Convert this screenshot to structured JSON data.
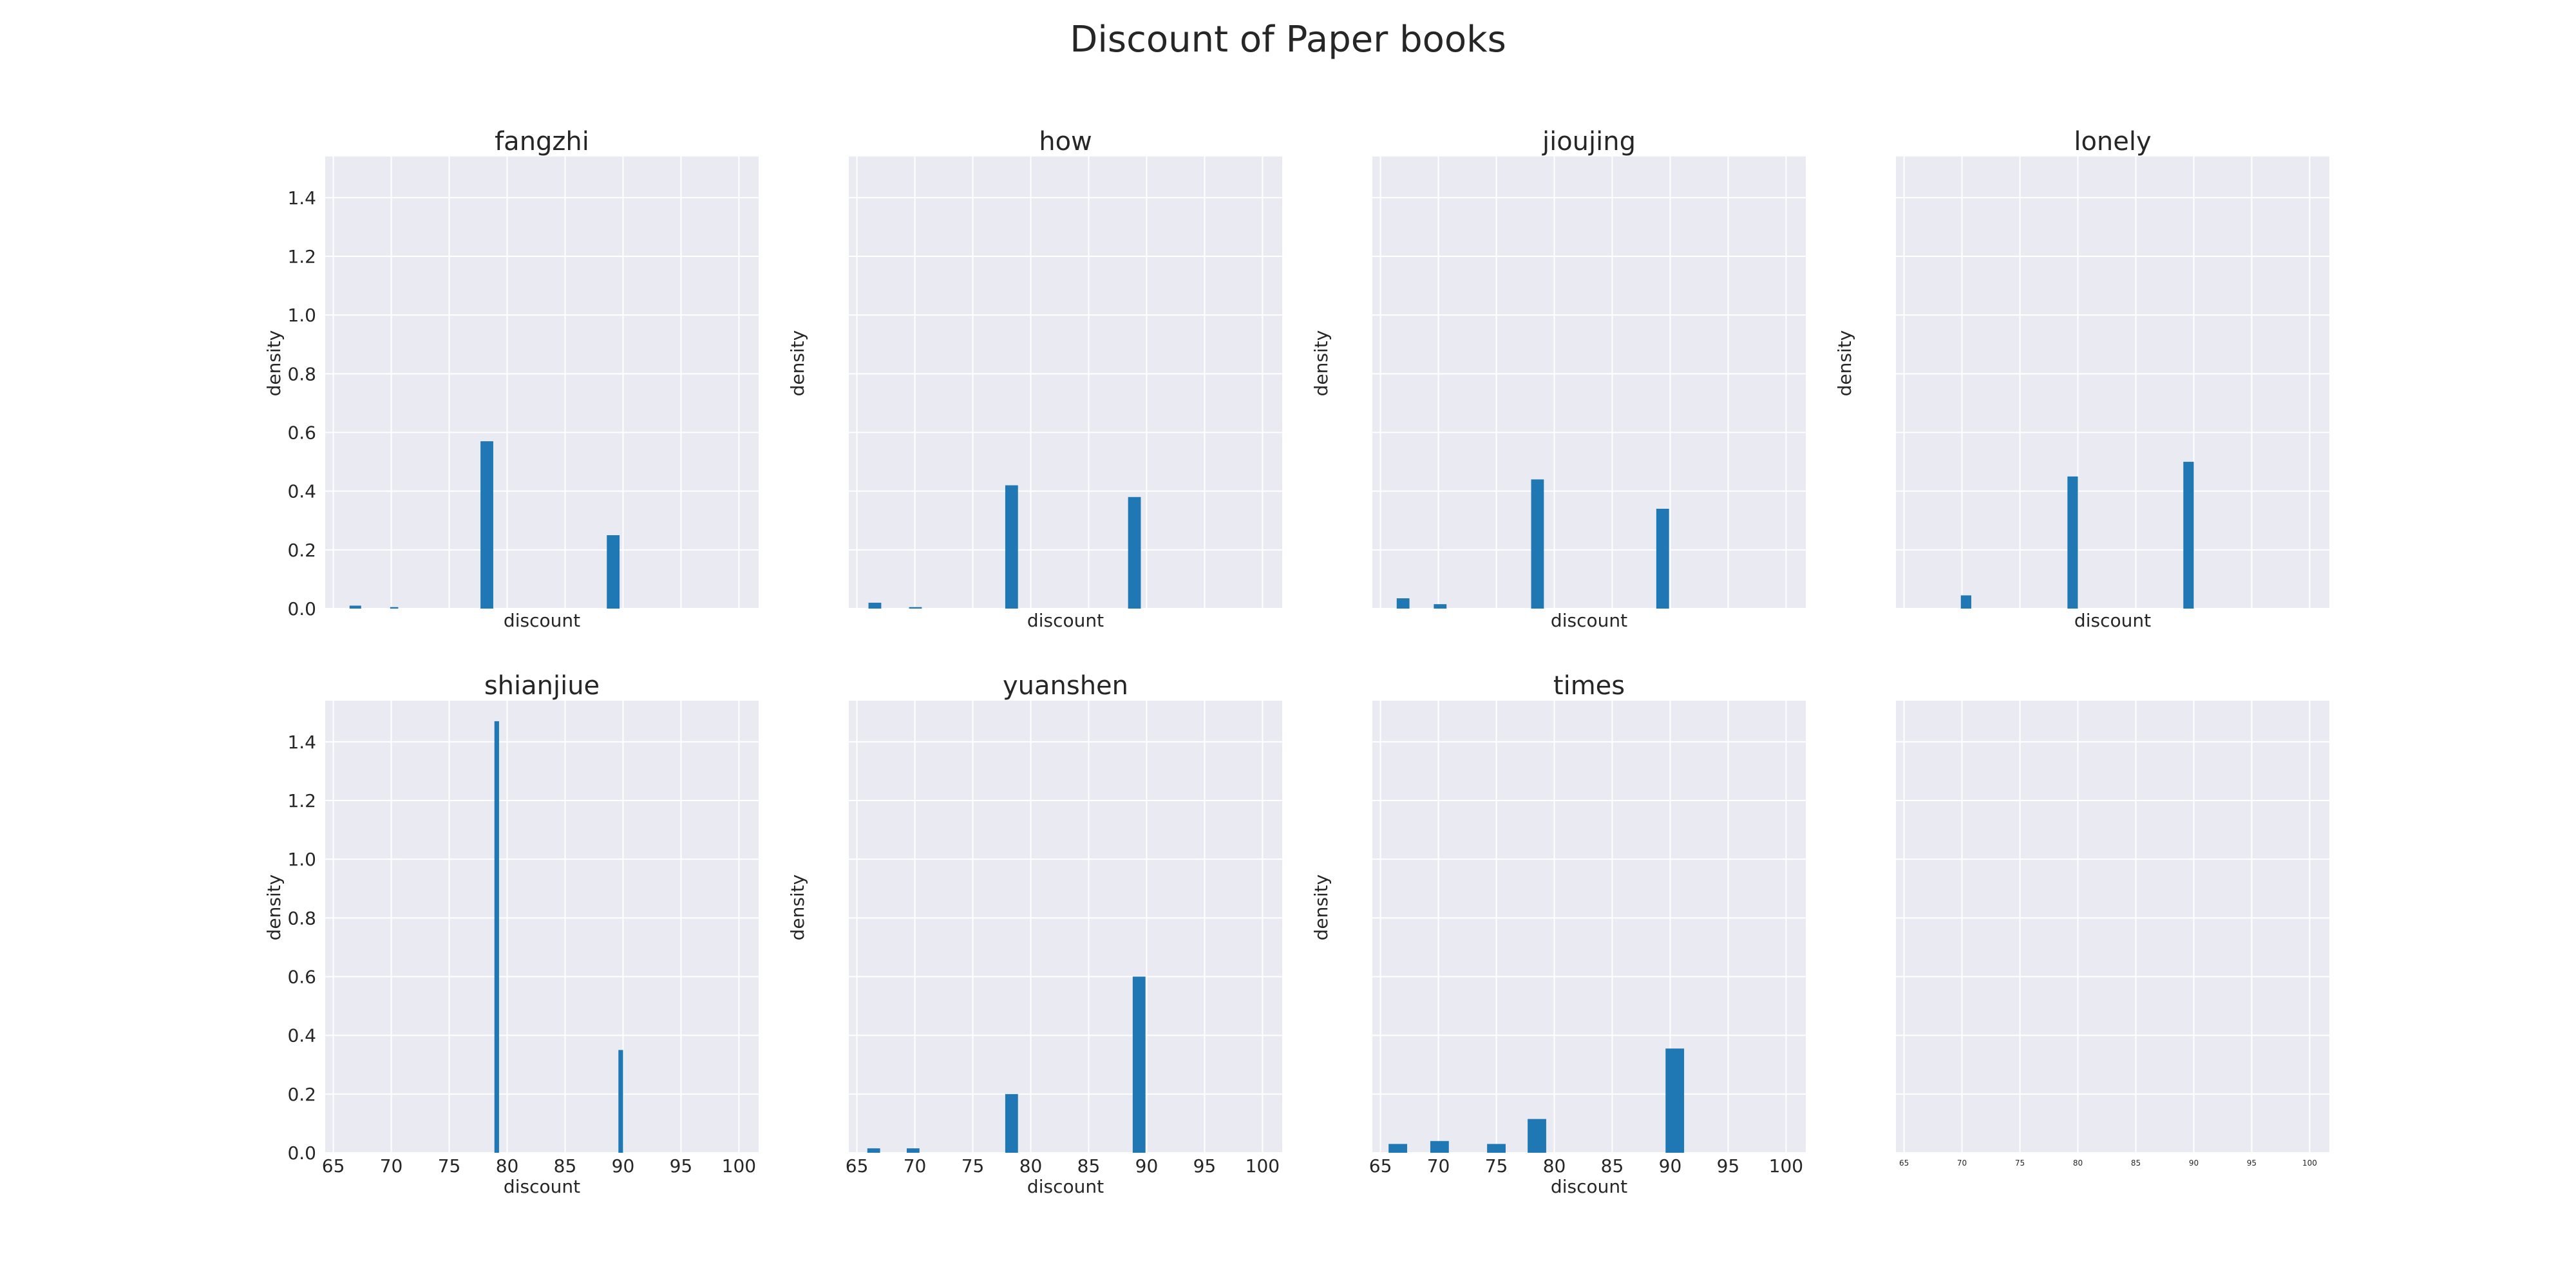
{
  "title": "Discount of Paper books",
  "chart_data": [
    {
      "type": "bar",
      "title": "fangzhi",
      "xlabel": "discount",
      "ylabel": "density",
      "xlim": [
        64.3,
        101.7
      ],
      "ylim": [
        0,
        1.54
      ],
      "xticks": [],
      "yticks": [
        "0.0",
        "0.2",
        "0.4",
        "0.6",
        "0.8",
        "1.0",
        "1.2",
        "1.4"
      ],
      "grid": true,
      "bars": [
        {
          "x0": 66.4,
          "x1": 67.4,
          "y": 0.01
        },
        {
          "x0": 69.9,
          "x1": 70.6,
          "y": 0.005
        },
        {
          "x0": 77.7,
          "x1": 78.8,
          "y": 0.57
        },
        {
          "x0": 88.6,
          "x1": 89.7,
          "y": 0.25
        }
      ]
    },
    {
      "type": "bar",
      "title": "how",
      "xlabel": "discount",
      "ylabel": "density",
      "xlim": [
        64.3,
        101.7
      ],
      "ylim": [
        0,
        1.54
      ],
      "xticks": [],
      "yticks": [],
      "grid": true,
      "bars": [
        {
          "x0": 66.0,
          "x1": 67.1,
          "y": 0.02
        },
        {
          "x0": 69.5,
          "x1": 70.6,
          "y": 0.005
        },
        {
          "x0": 77.8,
          "x1": 78.9,
          "y": 0.42
        },
        {
          "x0": 88.4,
          "x1": 89.5,
          "y": 0.38
        }
      ]
    },
    {
      "type": "bar",
      "title": "jioujing",
      "xlabel": "discount",
      "ylabel": "density",
      "xlim": [
        64.3,
        101.7
      ],
      "ylim": [
        0,
        1.54
      ],
      "xticks": [],
      "yticks": [],
      "grid": true,
      "bars": [
        {
          "x0": 66.4,
          "x1": 67.5,
          "y": 0.035
        },
        {
          "x0": 69.6,
          "x1": 70.7,
          "y": 0.015
        },
        {
          "x0": 78.0,
          "x1": 79.1,
          "y": 0.44
        },
        {
          "x0": 88.8,
          "x1": 89.9,
          "y": 0.34
        }
      ]
    },
    {
      "type": "bar",
      "title": "lonely",
      "xlabel": "discount",
      "ylabel": "density",
      "xlim": [
        64.3,
        101.7
      ],
      "ylim": [
        0,
        1.54
      ],
      "xticks": [],
      "yticks": [],
      "grid": true,
      "bars": [
        {
          "x0": 69.9,
          "x1": 70.8,
          "y": 0.045
        },
        {
          "x0": 79.1,
          "x1": 80.0,
          "y": 0.45
        },
        {
          "x0": 89.1,
          "x1": 90.0,
          "y": 0.5
        }
      ]
    },
    {
      "type": "bar",
      "title": "shianjiue",
      "xlabel": "discount",
      "ylabel": "density",
      "xlim": [
        64.3,
        101.7
      ],
      "ylim": [
        0,
        1.54
      ],
      "xticks": [
        "65",
        "70",
        "75",
        "80",
        "85",
        "90",
        "95",
        "100"
      ],
      "yticks": [
        "0.0",
        "0.2",
        "0.4",
        "0.6",
        "0.8",
        "1.0",
        "1.2",
        "1.4"
      ],
      "grid": true,
      "bars": [
        {
          "x0": 78.9,
          "x1": 79.3,
          "y": 1.47
        },
        {
          "x0": 89.6,
          "x1": 90.0,
          "y": 0.35
        }
      ]
    },
    {
      "type": "bar",
      "title": "yuanshen",
      "xlabel": "discount",
      "ylabel": "density",
      "xlim": [
        64.3,
        101.7
      ],
      "ylim": [
        0,
        1.54
      ],
      "xticks": [
        "65",
        "70",
        "75",
        "80",
        "85",
        "90",
        "95",
        "100"
      ],
      "yticks": [],
      "grid": true,
      "bars": [
        {
          "x0": 65.9,
          "x1": 67.0,
          "y": 0.015
        },
        {
          "x0": 69.3,
          "x1": 70.4,
          "y": 0.015
        },
        {
          "x0": 77.8,
          "x1": 78.9,
          "y": 0.2
        },
        {
          "x0": 88.8,
          "x1": 89.9,
          "y": 0.6
        }
      ]
    },
    {
      "type": "bar",
      "title": "times",
      "xlabel": "discount",
      "ylabel": "density",
      "xlim": [
        64.3,
        101.7
      ],
      "ylim": [
        0,
        1.54
      ],
      "xticks": [
        "65",
        "70",
        "75",
        "80",
        "85",
        "90",
        "95",
        "100"
      ],
      "yticks": [],
      "grid": true,
      "bars": [
        {
          "x0": 65.7,
          "x1": 67.3,
          "y": 0.03
        },
        {
          "x0": 69.3,
          "x1": 70.9,
          "y": 0.04
        },
        {
          "x0": 74.2,
          "x1": 75.8,
          "y": 0.03
        },
        {
          "x0": 77.7,
          "x1": 79.3,
          "y": 0.115
        },
        {
          "x0": 89.6,
          "x1": 91.2,
          "y": 0.355
        }
      ]
    },
    {
      "type": "bar",
      "title": "",
      "xlabel": "",
      "ylabel": "",
      "xlim": [
        64.3,
        101.7
      ],
      "ylim": [
        0,
        1.54
      ],
      "xticks": [
        "65",
        "70",
        "75",
        "80",
        "85",
        "90",
        "95",
        "100"
      ],
      "xticks_small": true,
      "yticks": [],
      "grid": true,
      "bars": []
    }
  ]
}
